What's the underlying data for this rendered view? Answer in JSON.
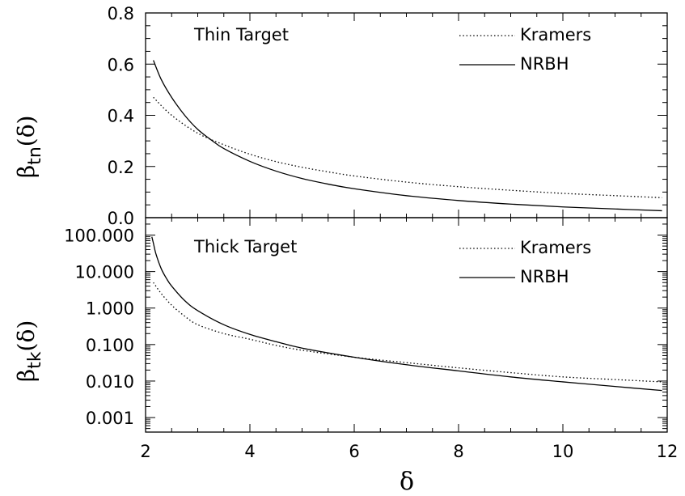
{
  "chart_data": [
    {
      "type": "line",
      "title": "",
      "annotation": "Thin Target",
      "xlabel": "",
      "ylabel_main": "β",
      "ylabel_sub": "tn",
      "ylabel_tail": "(δ)",
      "xlim": [
        2,
        12
      ],
      "ylim": [
        0,
        0.8
      ],
      "yscale": "linear",
      "yticks": [
        0.0,
        0.2,
        0.4,
        0.6,
        0.8
      ],
      "ytick_labels": [
        "0.0",
        "0.2",
        "0.4",
        "0.6",
        "0.8"
      ],
      "legend_position": "top-right",
      "series": [
        {
          "name": "Kramers",
          "style": "dotted",
          "x": [
            2.15,
            2.5,
            3,
            3.5,
            4,
            4.5,
            5,
            5.5,
            6,
            7,
            8,
            9,
            10,
            11,
            11.9
          ],
          "y": [
            0.47,
            0.4,
            0.33,
            0.285,
            0.248,
            0.219,
            0.197,
            0.179,
            0.163,
            0.139,
            0.121,
            0.107,
            0.095,
            0.086,
            0.078
          ]
        },
        {
          "name": "NRBH",
          "style": "solid",
          "x": [
            2.15,
            2.3,
            2.5,
            2.75,
            3,
            3.25,
            3.5,
            4,
            4.5,
            5,
            5.5,
            6,
            7,
            8,
            9,
            10,
            11,
            11.9
          ],
          "y": [
            0.615,
            0.54,
            0.47,
            0.4,
            0.345,
            0.305,
            0.27,
            0.22,
            0.182,
            0.153,
            0.131,
            0.113,
            0.086,
            0.067,
            0.053,
            0.042,
            0.034,
            0.027
          ]
        }
      ]
    },
    {
      "type": "line",
      "title": "",
      "annotation": "Thick Target",
      "xlabel": "δ",
      "ylabel_main": "β",
      "ylabel_sub": "tk",
      "ylabel_tail": "(δ)",
      "xlim": [
        2,
        12
      ],
      "ylim": [
        0.0004,
        300
      ],
      "yscale": "log",
      "yticks": [
        0.001,
        0.01,
        0.1,
        1,
        10,
        100
      ],
      "ytick_labels": [
        "0.001",
        "0.010",
        "0.100",
        "1.000",
        "10.000",
        "100.000"
      ],
      "xticks": [
        2,
        4,
        6,
        8,
        10,
        12
      ],
      "xtick_labels": [
        "2",
        "4",
        "6",
        "8",
        "10",
        "12"
      ],
      "legend_position": "top-right",
      "series": [
        {
          "name": "Kramers",
          "style": "dotted",
          "x": [
            2.15,
            2.3,
            2.5,
            2.75,
            3,
            3.5,
            4,
            4.5,
            5,
            6,
            7,
            8,
            9,
            10,
            11,
            11.9
          ],
          "y": [
            5.0,
            2.5,
            1.2,
            0.6,
            0.35,
            0.2,
            0.14,
            0.095,
            0.07,
            0.045,
            0.032,
            0.023,
            0.017,
            0.013,
            0.011,
            0.0095
          ]
        },
        {
          "name": "NRBH",
          "style": "solid",
          "x": [
            2.12,
            2.15,
            2.2,
            2.3,
            2.4,
            2.5,
            2.75,
            3,
            3.5,
            4,
            4.5,
            5,
            6,
            7,
            8,
            9,
            10,
            11,
            11.9
          ],
          "y": [
            90,
            60,
            30,
            12,
            6.5,
            4,
            1.6,
            0.85,
            0.35,
            0.19,
            0.12,
            0.08,
            0.045,
            0.028,
            0.019,
            0.013,
            0.0095,
            0.0071,
            0.0055
          ]
        }
      ]
    }
  ]
}
